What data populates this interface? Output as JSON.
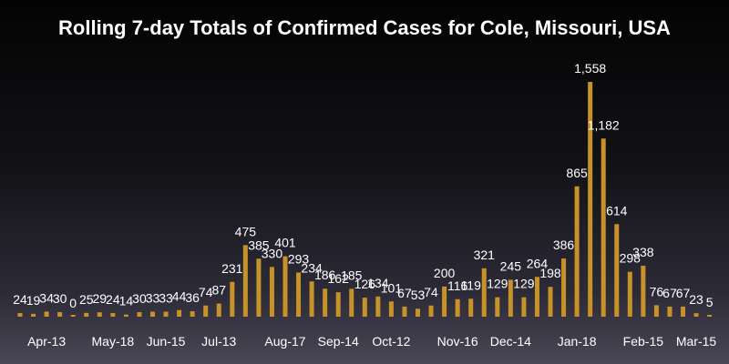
{
  "chart_data": {
    "type": "bar",
    "title": "Rolling 7-day Totals of Confirmed Cases for Cole, Missouri, USA",
    "xlabel": "",
    "ylabel": "",
    "values": [
      24,
      19,
      34,
      30,
      0,
      25,
      29,
      24,
      14,
      30,
      33,
      33,
      44,
      36,
      74,
      87,
      231,
      475,
      385,
      330,
      401,
      293,
      234,
      186,
      162,
      185,
      126,
      134,
      101,
      67,
      53,
      74,
      200,
      116,
      119,
      321,
      129,
      245,
      129,
      264,
      198,
      386,
      865,
      1558,
      1182,
      614,
      298,
      338,
      76,
      67,
      67,
      23,
      5
    ],
    "x_tick_labels": [
      {
        "index": 2,
        "label": "Apr-13"
      },
      {
        "index": 7,
        "label": "May-18"
      },
      {
        "index": 11,
        "label": "Jun-15"
      },
      {
        "index": 15,
        "label": "Jul-13"
      },
      {
        "index": 20,
        "label": "Aug-17"
      },
      {
        "index": 24,
        "label": "Sep-14"
      },
      {
        "index": 28,
        "label": "Oct-12"
      },
      {
        "index": 33,
        "label": "Nov-16"
      },
      {
        "index": 37,
        "label": "Dec-14"
      },
      {
        "index": 42,
        "label": "Jan-18"
      },
      {
        "index": 47,
        "label": "Feb-15"
      },
      {
        "index": 51,
        "label": "Mar-15"
      }
    ],
    "ylim": [
      0,
      1600
    ],
    "grid": false,
    "legend": "none",
    "data_labels": true,
    "bar_color": "#c8922a",
    "label_color": "#ffffff"
  }
}
